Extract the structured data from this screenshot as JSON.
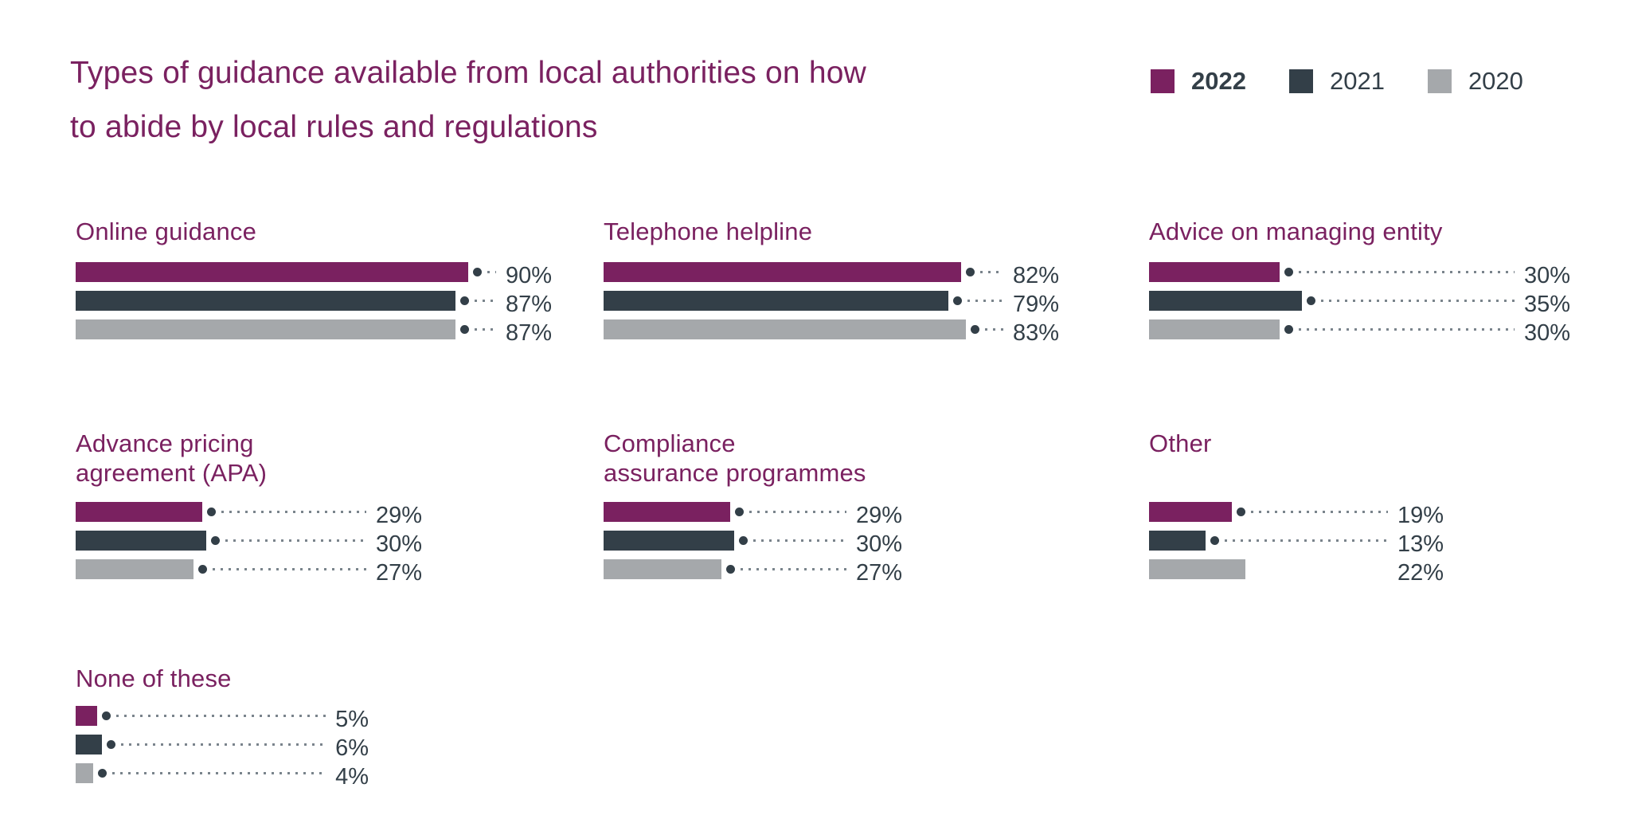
{
  "header": {
    "title_line1": "Types of guidance available from local authorities on how",
    "title_line2": "to abide by local rules and regulations"
  },
  "legend": {
    "items": [
      {
        "label": "2022",
        "color": "#7A2160",
        "emphasis": true
      },
      {
        "label": "2021",
        "color": "#333F48",
        "emphasis": false
      },
      {
        "label": "2020",
        "color": "#A5A8AB",
        "emphasis": false
      }
    ]
  },
  "colors": {
    "purple": "#7A2160",
    "slate": "#333F48",
    "gray": "#A5A8AB",
    "leader_dots": "#7A848C",
    "background": "#FFFFFF"
  },
  "chart_data": {
    "type": "bar",
    "orientation": "horizontal",
    "title": "Types of guidance available from local authorities on how to abide by local rules and regulations",
    "unit": "%",
    "value_axis_range": [
      0,
      100
    ],
    "grid": false,
    "legend_position": "top-right",
    "series_names": [
      "2022",
      "2021",
      "2020"
    ],
    "series_colors": [
      "#7A2160",
      "#333F48",
      "#A5A8AB"
    ],
    "groups": [
      {
        "label": "Online guidance",
        "label_lines": [
          "Online guidance"
        ],
        "values": [
          90,
          87,
          87
        ],
        "display": [
          "90%",
          "87%",
          "87%"
        ]
      },
      {
        "label": "Telephone helpline",
        "label_lines": [
          "Telephone helpline"
        ],
        "values": [
          82,
          79,
          83
        ],
        "display": [
          "82%",
          "79%",
          "83%"
        ]
      },
      {
        "label": "Advice on managing entity",
        "label_lines": [
          "Advice on managing entity"
        ],
        "values": [
          30,
          35,
          30
        ],
        "display": [
          "30%",
          "35%",
          "30%"
        ]
      },
      {
        "label": "Advance pricing agreement (APA)",
        "label_lines": [
          "Advance pricing",
          "agreement (APA)"
        ],
        "values": [
          29,
          30,
          27
        ],
        "display": [
          "29%",
          "30%",
          "27%"
        ]
      },
      {
        "label": "Compliance assurance programmes",
        "label_lines": [
          "Compliance",
          "assurance programmes"
        ],
        "values": [
          29,
          30,
          27
        ],
        "display": [
          "29%",
          "30%",
          "27%"
        ]
      },
      {
        "label": "Other",
        "label_lines": [
          "Other"
        ],
        "values": [
          19,
          13,
          22
        ],
        "display": [
          "19%",
          "13%",
          "22%"
        ],
        "hide_leader_rows": [
          2
        ]
      },
      {
        "label": "None of these",
        "label_lines": [
          "None of these"
        ],
        "values": [
          5,
          6,
          4
        ],
        "display": [
          "5%",
          "6%",
          "4%"
        ]
      }
    ]
  }
}
